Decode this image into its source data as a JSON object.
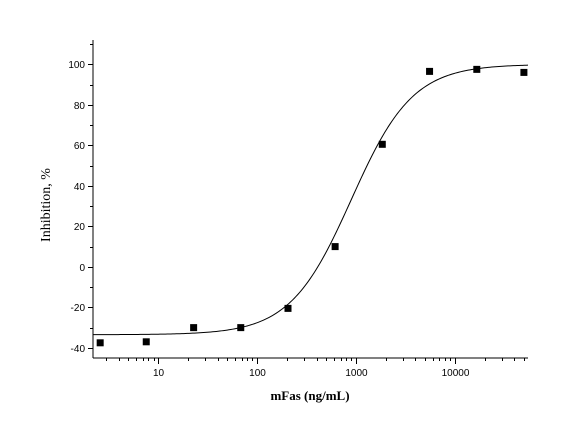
{
  "chart_data": {
    "type": "scatter",
    "title": "",
    "xlabel": "mFas (ng/mL)",
    "ylabel": "Inhibition, %",
    "x_scale": "log",
    "xlim": [
      2.2,
      55000
    ],
    "ylim": [
      -45,
      112
    ],
    "x_ticks": [
      10,
      100,
      1000,
      10000
    ],
    "x_tick_labels": [
      "10",
      "100",
      "1000",
      "10000"
    ],
    "y_ticks": [
      -40,
      -20,
      0,
      20,
      40,
      60,
      80,
      100
    ],
    "y_tick_labels": [
      "-40",
      "-20",
      "0",
      "20",
      "40",
      "60",
      "80",
      "100"
    ],
    "grid": false,
    "legend": "none",
    "series": [
      {
        "type": "scatter",
        "x": [
          2.6,
          7.6,
          22.9,
          68.6,
          206,
          617,
          1850,
          5560,
          16700,
          50000
        ],
        "y": [
          -37.5,
          -37.0,
          -30.0,
          -30.0,
          -20.5,
          10.0,
          60.5,
          96.5,
          97.5,
          96.0
        ]
      },
      {
        "type": "line",
        "fit": {
          "model": "logistic",
          "bottom": -33.5,
          "top": 100.0,
          "ec50": 900,
          "hill": 1.4
        }
      }
    ]
  }
}
